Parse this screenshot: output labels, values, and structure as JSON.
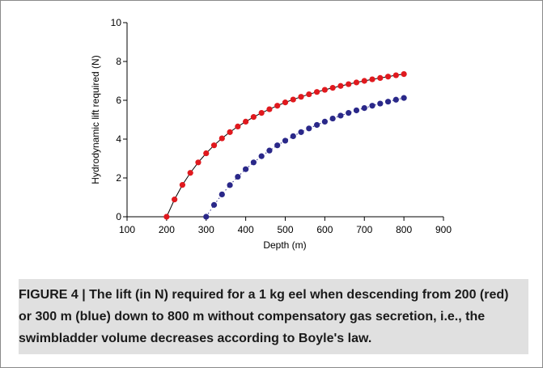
{
  "caption": "FIGURE 4 | The lift (in N) required for a 1 kg eel when descending from 200 (red) or 300 m (blue) down to 800 m without compensatory gas secretion, i.e., the swimbladder volume decreases according to Boyle's law.",
  "chart_data": {
    "type": "scatter",
    "title": "",
    "xlabel": "Depth (m)",
    "ylabel": "Hydrodynamic lift required (N)",
    "xlim": [
      100,
      900
    ],
    "ylim": [
      0,
      10
    ],
    "xticks": [
      100,
      200,
      300,
      400,
      500,
      600,
      700,
      800,
      900
    ],
    "yticks": [
      0,
      2,
      4,
      6,
      8,
      10
    ],
    "grid": false,
    "legend": "none",
    "series": [
      {
        "color": "#e0191e",
        "line": "solid",
        "x": [
          200,
          220,
          240,
          260,
          280,
          300,
          320,
          340,
          360,
          380,
          400,
          420,
          440,
          460,
          480,
          500,
          520,
          540,
          560,
          580,
          600,
          620,
          640,
          660,
          680,
          700,
          720,
          740,
          760,
          780,
          800
        ],
        "y": [
          0.0,
          0.89,
          1.64,
          2.26,
          2.8,
          3.27,
          3.68,
          4.04,
          4.36,
          4.65,
          4.9,
          5.14,
          5.35,
          5.54,
          5.72,
          5.89,
          6.04,
          6.18,
          6.31,
          6.43,
          6.54,
          6.64,
          6.74,
          6.83,
          6.92,
          7.0,
          7.08,
          7.15,
          7.22,
          7.29,
          7.35
        ]
      },
      {
        "color": "#2a2889",
        "line": "dotted",
        "x": [
          300,
          320,
          340,
          360,
          380,
          400,
          420,
          440,
          460,
          480,
          500,
          520,
          540,
          560,
          580,
          600,
          620,
          640,
          660,
          680,
          700,
          720,
          740,
          760,
          780,
          800
        ],
        "y": [
          0.0,
          0.61,
          1.15,
          1.63,
          2.06,
          2.45,
          2.8,
          3.12,
          3.41,
          3.68,
          3.92,
          4.15,
          4.36,
          4.55,
          4.73,
          4.9,
          5.06,
          5.21,
          5.35,
          5.48,
          5.6,
          5.72,
          5.83,
          5.93,
          6.03,
          6.12
        ]
      }
    ]
  }
}
